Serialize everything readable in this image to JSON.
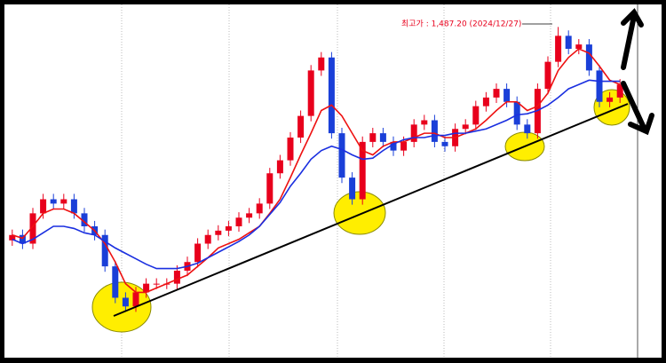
{
  "chart_data": {
    "type": "candlestick",
    "annotation": "최고가 : 1,487.20 (2024/12/27)",
    "up_color": "#e8001c",
    "down_color": "#1a3fd8",
    "ylim": [
      1180,
      1508
    ],
    "open": [
      1290,
      1295,
      1287,
      1315,
      1328,
      1324,
      1328,
      1315,
      1303,
      1295,
      1266,
      1237,
      1229,
      1242,
      1250,
      1250,
      1250,
      1262,
      1270,
      1287,
      1295,
      1299,
      1303,
      1311,
      1315,
      1324,
      1352,
      1364,
      1385,
      1405,
      1447,
      1459,
      1389,
      1348,
      1328,
      1381,
      1389,
      1381,
      1373,
      1381,
      1397,
      1401,
      1381,
      1377,
      1393,
      1397,
      1414,
      1422,
      1430,
      1418,
      1397,
      1389,
      1430,
      1455,
      1479,
      1467,
      1471,
      1447,
      1418,
      1422
    ],
    "high": [
      1300,
      1300,
      1320,
      1333,
      1333,
      1333,
      1333,
      1320,
      1308,
      1300,
      1271,
      1242,
      1247,
      1255,
      1255,
      1255,
      1267,
      1275,
      1292,
      1300,
      1304,
      1308,
      1316,
      1320,
      1329,
      1357,
      1369,
      1390,
      1410,
      1452,
      1464,
      1464,
      1394,
      1353,
      1386,
      1394,
      1394,
      1386,
      1386,
      1402,
      1406,
      1406,
      1386,
      1398,
      1402,
      1419,
      1427,
      1435,
      1435,
      1423,
      1402,
      1435,
      1460,
      1487.2,
      1484,
      1476,
      1476,
      1452,
      1427,
      1439
    ],
    "low": [
      1285,
      1282,
      1282,
      1310,
      1319,
      1319,
      1310,
      1298,
      1290,
      1261,
      1232,
      1224,
      1224,
      1237,
      1245,
      1245,
      1245,
      1257,
      1265,
      1282,
      1290,
      1294,
      1298,
      1306,
      1310,
      1319,
      1347,
      1359,
      1380,
      1400,
      1442,
      1384,
      1343,
      1323,
      1323,
      1376,
      1376,
      1368,
      1368,
      1376,
      1392,
      1376,
      1372,
      1372,
      1388,
      1392,
      1409,
      1417,
      1413,
      1392,
      1384,
      1384,
      1425,
      1450,
      1462,
      1462,
      1442,
      1413,
      1413,
      1417
    ],
    "close": [
      1295,
      1287,
      1315,
      1328,
      1324,
      1328,
      1315,
      1303,
      1295,
      1266,
      1237,
      1229,
      1242,
      1250,
      1250,
      1250,
      1262,
      1270,
      1287,
      1295,
      1299,
      1303,
      1311,
      1315,
      1324,
      1352,
      1364,
      1385,
      1405,
      1447,
      1459,
      1389,
      1348,
      1328,
      1381,
      1389,
      1381,
      1373,
      1381,
      1397,
      1401,
      1381,
      1377,
      1393,
      1397,
      1414,
      1422,
      1430,
      1418,
      1397,
      1389,
      1430,
      1455,
      1479,
      1467,
      1471,
      1447,
      1418,
      1422,
      1434
    ],
    "lines": [
      {
        "color": "#ee1111",
        "values": [
          1295,
          1292,
          1303,
          1315,
          1319,
          1319,
          1315,
          1307,
          1299,
          1287,
          1270,
          1250,
          1242,
          1242,
          1246,
          1250,
          1254,
          1258,
          1266,
          1274,
          1283,
          1287,
          1291,
          1297,
          1303,
          1315,
          1328,
          1348,
          1369,
          1389,
          1410,
          1415,
          1405,
          1389,
          1373,
          1369,
          1377,
          1381,
          1381,
          1385,
          1389,
          1389,
          1385,
          1385,
          1389,
          1393,
          1401,
          1410,
          1418,
          1418,
          1410,
          1414,
          1426,
          1447,
          1459,
          1467,
          1463,
          1451,
          1438,
          1434
        ]
      },
      {
        "color": "#1a2fe0",
        "values": [
          1291,
          1287,
          1291,
          1297,
          1303,
          1303,
          1301,
          1297,
          1295,
          1289,
          1283,
          1278,
          1273,
          1268,
          1264,
          1264,
          1264,
          1266,
          1269,
          1274,
          1279,
          1284,
          1289,
          1295,
          1303,
          1314,
          1325,
          1340,
          1352,
          1365,
          1373,
          1377,
          1374,
          1369,
          1365,
          1366,
          1373,
          1379,
          1383,
          1385,
          1385,
          1387,
          1387,
          1389,
          1389,
          1391,
          1393,
          1397,
          1401,
          1406,
          1407,
          1410,
          1415,
          1422,
          1430,
          1434,
          1438,
          1437,
          1437,
          1437
        ]
      }
    ]
  }
}
